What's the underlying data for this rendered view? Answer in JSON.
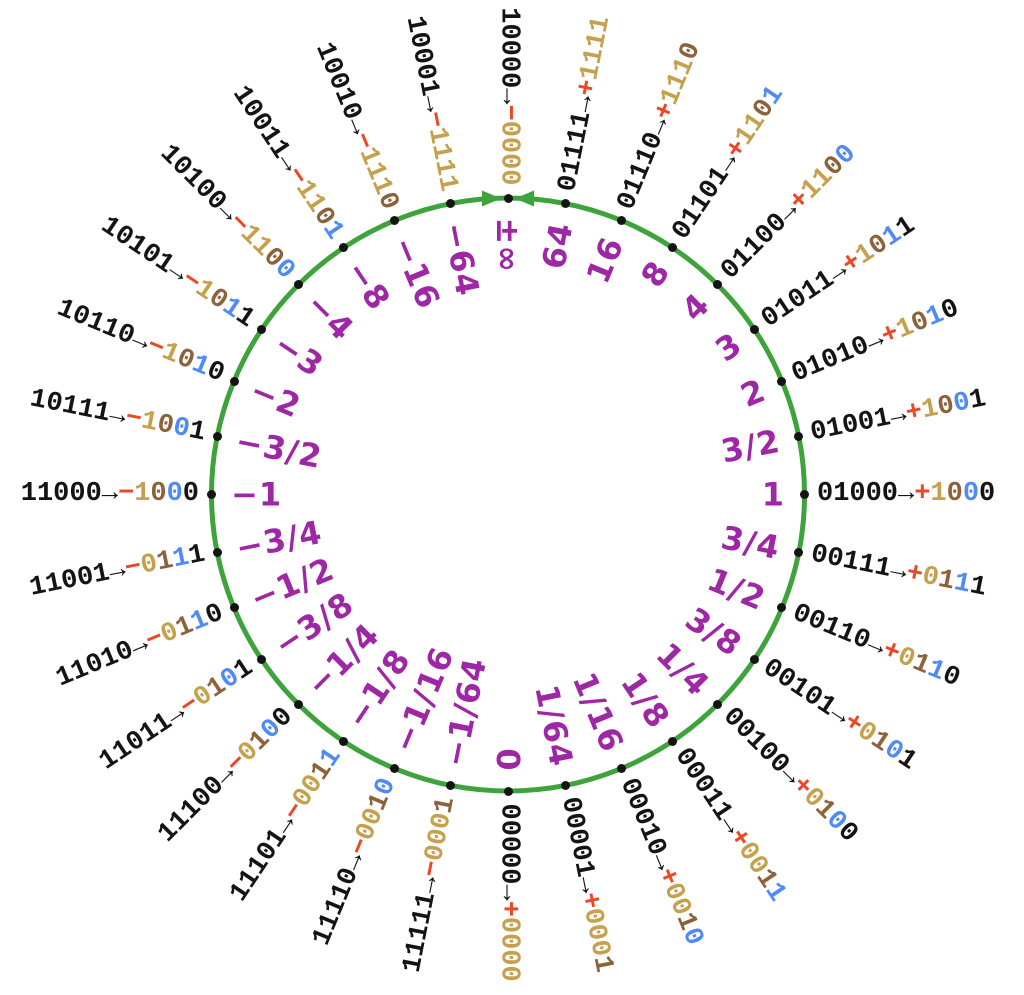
{
  "colors": {
    "circle": "#3FA33C",
    "dot": "#141414",
    "bits": "#141414",
    "sign": "#EC4826",
    "regime": "#C5A14D",
    "regime_end": "#8B6239",
    "exponent": "#508AF7",
    "fraction": "#141414",
    "value": "#9D27A4"
  },
  "ring": {
    "arrow": "→",
    "entries": [
      {
        "bits": "10000",
        "sign": "−",
        "decoded": "0000",
        "bit_colors": "GGGG",
        "value": "±∞"
      },
      {
        "bits": "01111",
        "sign": "+",
        "decoded": "1111",
        "bit_colors": "GGGG",
        "value": "64"
      },
      {
        "bits": "01110",
        "sign": "+",
        "decoded": "1110",
        "bit_colors": "GGGB",
        "value": "16"
      },
      {
        "bits": "01101",
        "sign": "+",
        "decoded": "1101",
        "bit_colors": "GGBE",
        "value": "8"
      },
      {
        "bits": "01100",
        "sign": "+",
        "decoded": "1100",
        "bit_colors": "GGBE",
        "value": "4"
      },
      {
        "bits": "01011",
        "sign": "+",
        "decoded": "1011",
        "bit_colors": "GBEF",
        "value": "3"
      },
      {
        "bits": "01010",
        "sign": "+",
        "decoded": "1010",
        "bit_colors": "GBEF",
        "value": "2"
      },
      {
        "bits": "01001",
        "sign": "+",
        "decoded": "1001",
        "bit_colors": "GBEF",
        "value": "3/2"
      },
      {
        "bits": "01000",
        "sign": "+",
        "decoded": "1000",
        "bit_colors": "GBEF",
        "value": "1"
      },
      {
        "bits": "00111",
        "sign": "+",
        "decoded": "0111",
        "bit_colors": "GBEF",
        "value": "3/4"
      },
      {
        "bits": "00110",
        "sign": "+",
        "decoded": "0110",
        "bit_colors": "GBEF",
        "value": "1/2"
      },
      {
        "bits": "00101",
        "sign": "+",
        "decoded": "0101",
        "bit_colors": "GBEF",
        "value": "3/8"
      },
      {
        "bits": "00100",
        "sign": "+",
        "decoded": "0100",
        "bit_colors": "GBEF",
        "value": "1/4"
      },
      {
        "bits": "00011",
        "sign": "+",
        "decoded": "0011",
        "bit_colors": "GGBE",
        "value": "1/8"
      },
      {
        "bits": "00010",
        "sign": "+",
        "decoded": "0010",
        "bit_colors": "GGBE",
        "value": "1/16"
      },
      {
        "bits": "00001",
        "sign": "+",
        "decoded": "0001",
        "bit_colors": "GGGB",
        "value": "1/64"
      },
      {
        "bits": "00000",
        "sign": "+",
        "decoded": "0000",
        "bit_colors": "GGGG",
        "value": "0"
      },
      {
        "bits": "11111",
        "sign": "−",
        "decoded": "0001",
        "bit_colors": "GGGB",
        "value": "−1/64"
      },
      {
        "bits": "11110",
        "sign": "−",
        "decoded": "0010",
        "bit_colors": "GGBE",
        "value": "−1/16"
      },
      {
        "bits": "11101",
        "sign": "−",
        "decoded": "0011",
        "bit_colors": "GGBE",
        "value": "−1/8"
      },
      {
        "bits": "11100",
        "sign": "−",
        "decoded": "0100",
        "bit_colors": "GBEF",
        "value": "−1/4"
      },
      {
        "bits": "11011",
        "sign": "−",
        "decoded": "0101",
        "bit_colors": "GBEF",
        "value": "−3/8"
      },
      {
        "bits": "11010",
        "sign": "−",
        "decoded": "0110",
        "bit_colors": "GBEF",
        "value": "−1/2"
      },
      {
        "bits": "11001",
        "sign": "−",
        "decoded": "0111",
        "bit_colors": "GBEF",
        "value": "−3/4"
      },
      {
        "bits": "11000",
        "sign": "−",
        "decoded": "1000",
        "bit_colors": "GBEF",
        "value": "−1"
      },
      {
        "bits": "10111",
        "sign": "−",
        "decoded": "1001",
        "bit_colors": "GBEF",
        "value": "−3/2"
      },
      {
        "bits": "10110",
        "sign": "−",
        "decoded": "1010",
        "bit_colors": "GBEF",
        "value": "−2"
      },
      {
        "bits": "10101",
        "sign": "−",
        "decoded": "1011",
        "bit_colors": "GBEF",
        "value": "−3"
      },
      {
        "bits": "10100",
        "sign": "−",
        "decoded": "1100",
        "bit_colors": "GGBE",
        "value": "−4"
      },
      {
        "bits": "10011",
        "sign": "−",
        "decoded": "1101",
        "bit_colors": "GGBE",
        "value": "−8"
      },
      {
        "bits": "10010",
        "sign": "−",
        "decoded": "1110",
        "bit_colors": "GGGB",
        "value": "−16"
      },
      {
        "bits": "10001",
        "sign": "−",
        "decoded": "1111",
        "bit_colors": "GGGG",
        "value": "−64"
      }
    ]
  }
}
